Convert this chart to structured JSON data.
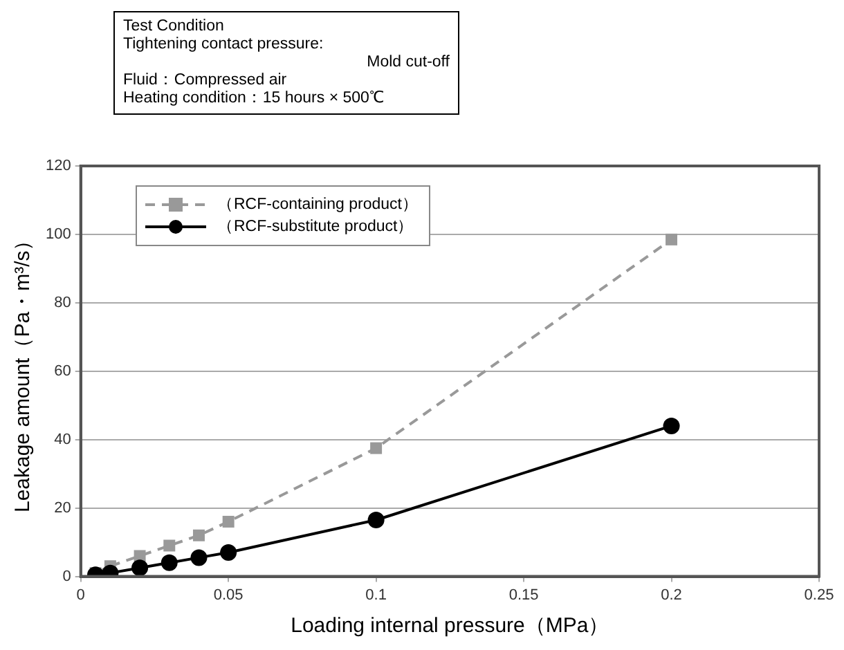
{
  "chart_data": {
    "type": "line",
    "xlabel": "Loading internal pressure（MPa）",
    "ylabel": "Leakage amount（Pa・m³/s）",
    "annotations": [
      "Test Condition",
      "Tightening contact pressure:",
      "Mold cut-off",
      "Fluid：Compressed air",
      "Heating condition：15 hours × 500℃"
    ],
    "x": [
      0.005,
      0.01,
      0.02,
      0.03,
      0.04,
      0.05,
      0.1,
      0.2
    ],
    "series": [
      {
        "name": "（RCF-containing product）",
        "color": "#999999",
        "marker": "square",
        "line_style": "dashed",
        "values": [
          1,
          3,
          6,
          9,
          12,
          16,
          37.5,
          98.5
        ]
      },
      {
        "name": "（RCF-substitute product）",
        "color": "#000000",
        "marker": "circle",
        "line_style": "solid",
        "values": [
          0.5,
          1,
          2.5,
          4,
          5.5,
          7,
          16.5,
          44
        ]
      }
    ],
    "xlim": [
      0,
      0.25
    ],
    "xticks": [
      0,
      0.05,
      0.1,
      0.15,
      0.2,
      0.25
    ],
    "ylim": [
      0,
      120
    ],
    "yticks": [
      0,
      20,
      40,
      60,
      80,
      100,
      120
    ],
    "grid": "y",
    "legend": "top left"
  }
}
